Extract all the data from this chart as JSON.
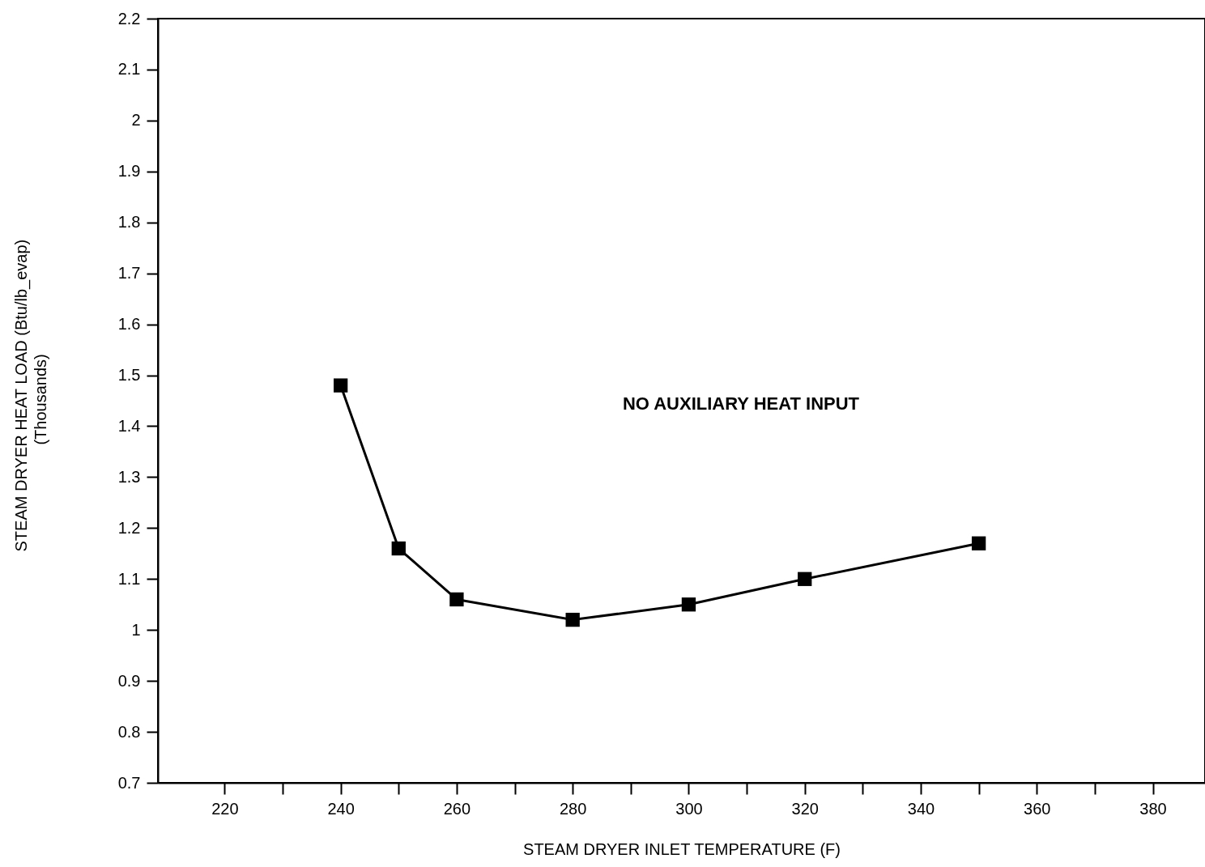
{
  "chart_data": {
    "type": "line",
    "xlabel": "STEAM DRYER INLET TEMPERATURE (F)",
    "ylabel": "STEAM DRYER HEAT LOAD (Btu/lb_evap)\n(Thousands)",
    "x": [
      240,
      250,
      260,
      280,
      300,
      320,
      350
    ],
    "series": [
      {
        "color": "#000000",
        "values": [
          1.48,
          1.16,
          1.06,
          1.02,
          1.05,
          1.1,
          1.17
        ]
      }
    ],
    "marker": "square",
    "line_style": "solid",
    "grid": false,
    "xlim": [
      208.5,
      389
    ],
    "ylim": [
      0.7,
      2.2
    ],
    "xticks": [
      220,
      {
        "value": 230,
        "label": null
      },
      240,
      {
        "value": 250,
        "label": null
      },
      260,
      {
        "value": 270,
        "label": null
      },
      280,
      {
        "value": 290,
        "label": null
      },
      300,
      {
        "value": 310,
        "label": null
      },
      320,
      {
        "value": 330,
        "label": null
      },
      340,
      {
        "value": 350,
        "label": null
      },
      360,
      {
        "value": 370,
        "label": null
      },
      380
    ],
    "yticks": [
      0.7,
      0.8,
      0.9,
      1,
      1.1,
      1.2,
      1.3,
      1.4,
      1.5,
      1.6,
      1.7,
      1.8,
      1.9,
      2,
      2.1,
      2.2
    ],
    "annotations": [
      "NO AUXILIARY HEAT INPUT"
    ]
  }
}
